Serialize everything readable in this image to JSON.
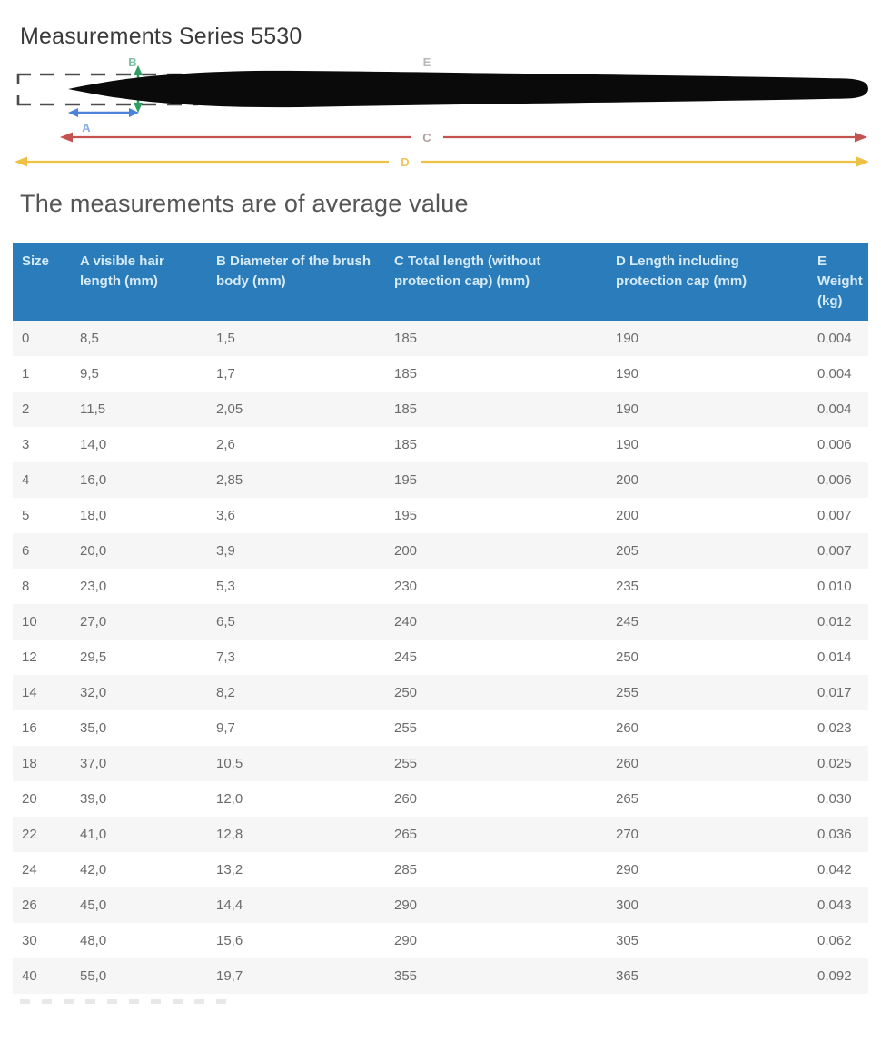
{
  "page": {
    "title": "Measurements Series 5530",
    "subtitle": "The measurements are of average value"
  },
  "diagram": {
    "description": "brush-silhouette-with-dimension-arrows",
    "labels": {
      "a": "A",
      "b": "B",
      "c": "C",
      "d": "D",
      "e": "E"
    },
    "colors": {
      "a_arrow": "#4c82d8",
      "b_arrow": "#2f9e62",
      "c_arrow": "#c4534f",
      "d_arrow": "#eec043",
      "label_a": "#86aae4",
      "label_b": "#7cc09e",
      "label_c": "#b0a09e",
      "label_d": "#eec45c",
      "label_e": "#b8b8b8",
      "cap_dash": "#4c4c4c",
      "brush": "#0a0a0a"
    }
  },
  "table": {
    "header_bg": "#2b7cba",
    "header_text_color": "#d6ebf8",
    "row_alt_bg": "#f6f6f6",
    "cell_text_color": "#6b6b6b",
    "columns": [
      "Size",
      "A visible hair length (mm)",
      "B Diameter of the brush body (mm)",
      "C Total length (without protection cap) (mm)",
      "D Length including protection cap (mm)",
      "E Weight (kg)"
    ],
    "rows": [
      [
        "0",
        "8,5",
        "1,5",
        "185",
        "190",
        "0,004"
      ],
      [
        "1",
        "9,5",
        "1,7",
        "185",
        "190",
        "0,004"
      ],
      [
        "2",
        "11,5",
        "2,05",
        "185",
        "190",
        "0,004"
      ],
      [
        "3",
        "14,0",
        "2,6",
        "185",
        "190",
        "0,006"
      ],
      [
        "4",
        "16,0",
        "2,85",
        "195",
        "200",
        "0,006"
      ],
      [
        "5",
        "18,0",
        "3,6",
        "195",
        "200",
        "0,007"
      ],
      [
        "6",
        "20,0",
        "3,9",
        "200",
        "205",
        "0,007"
      ],
      [
        "8",
        "23,0",
        "5,3",
        "230",
        "235",
        "0,010"
      ],
      [
        "10",
        "27,0",
        "6,5",
        "240",
        "245",
        "0,012"
      ],
      [
        "12",
        "29,5",
        "7,3",
        "245",
        "250",
        "0,014"
      ],
      [
        "14",
        "32,0",
        "8,2",
        "250",
        "255",
        "0,017"
      ],
      [
        "16",
        "35,0",
        "9,7",
        "255",
        "260",
        "0,023"
      ],
      [
        "18",
        "37,0",
        "10,5",
        "255",
        "260",
        "0,025"
      ],
      [
        "20",
        "39,0",
        "12,0",
        "260",
        "265",
        "0,030"
      ],
      [
        "22",
        "41,0",
        "12,8",
        "265",
        "270",
        "0,036"
      ],
      [
        "24",
        "42,0",
        "13,2",
        "285",
        "290",
        "0,042"
      ],
      [
        "26",
        "45,0",
        "14,4",
        "290",
        "300",
        "0,043"
      ],
      [
        "30",
        "48,0",
        "15,6",
        "290",
        "305",
        "0,062"
      ],
      [
        "40",
        "55,0",
        "19,7",
        "355",
        "365",
        "0,092"
      ]
    ]
  }
}
